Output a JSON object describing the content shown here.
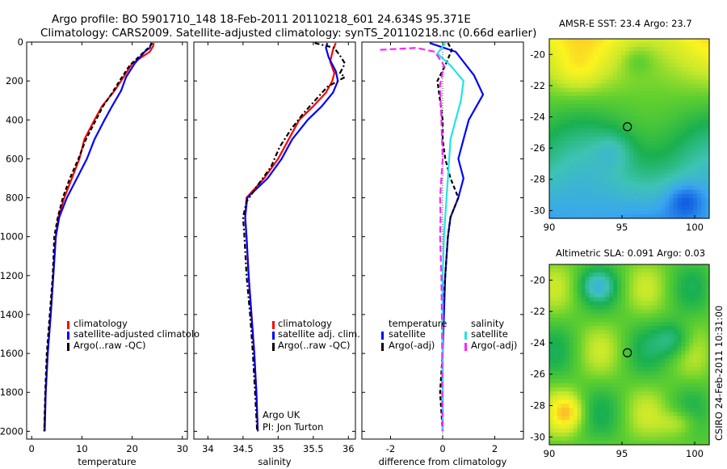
{
  "header": {
    "line1": "Argo profile: BO 5901710_148 18-Feb-2011 20110218_601 24.634S 95.371E",
    "line2": "Climatology: CARS2009. Satellite-adjusted climatology: synTS_20110218.nc (0.66d earlier)"
  },
  "footer_stamp": "CSIRO 24-Feb-2011 10:31:00",
  "colors": {
    "climatology": "#ff0000",
    "satellite": "#0000ff",
    "argo": "#000000",
    "sal_satellite": "#22e3e3",
    "sal_argo": "#ff22ff"
  },
  "chart_data": [
    {
      "type": "line",
      "xlabel": "temperature",
      "ylabel": "",
      "xlim": [
        -1,
        31
      ],
      "ylim": [
        2040,
        0
      ],
      "xticks": [
        0,
        10,
        20,
        30
      ],
      "yticks": [
        0,
        200,
        400,
        600,
        800,
        1000,
        1200,
        1400,
        1600,
        1800,
        2000
      ],
      "legend": [
        "climatology",
        "satellite-adjusted climatolo",
        "Argo(..raw -QC)"
      ],
      "series": [
        {
          "name": "climatology",
          "color": "#ff0000",
          "dash": "",
          "points": [
            [
              24.3,
              5
            ],
            [
              24.2,
              20
            ],
            [
              23.5,
              50
            ],
            [
              20.0,
              110
            ],
            [
              18.3,
              180
            ],
            [
              16.5,
              250
            ],
            [
              14.0,
              330
            ],
            [
              12.5,
              400
            ],
            [
              10.5,
              500
            ],
            [
              9.5,
              600
            ],
            [
              8.0,
              700
            ],
            [
              6.5,
              800
            ],
            [
              5.3,
              900
            ],
            [
              4.8,
              1000
            ],
            [
              4.3,
              1200
            ],
            [
              3.8,
              1400
            ],
            [
              3.2,
              1600
            ],
            [
              2.8,
              1800
            ],
            [
              2.5,
              2000
            ]
          ]
        },
        {
          "name": "satellite-adjusted climatolo",
          "color": "#0000ff",
          "dash": "",
          "points": [
            [
              23.8,
              5
            ],
            [
              23.5,
              30
            ],
            [
              22.5,
              50
            ],
            [
              20.5,
              110
            ],
            [
              18.8,
              180
            ],
            [
              17.8,
              250
            ],
            [
              16.0,
              330
            ],
            [
              14.5,
              400
            ],
            [
              12.5,
              500
            ],
            [
              11.0,
              600
            ],
            [
              9.0,
              700
            ],
            [
              7.0,
              800
            ],
            [
              5.5,
              900
            ],
            [
              4.8,
              1000
            ],
            [
              4.3,
              1200
            ],
            [
              3.8,
              1400
            ],
            [
              3.2,
              1600
            ],
            [
              2.8,
              1800
            ],
            [
              2.6,
              2000
            ]
          ]
        },
        {
          "name": "Argo(..raw -QC)",
          "color": "#000000",
          "dash": "5,3",
          "points": [
            [
              24.0,
              5
            ],
            [
              23.6,
              20
            ],
            [
              22.0,
              60
            ],
            [
              19.5,
              120
            ],
            [
              17.5,
              200
            ],
            [
              15.8,
              270
            ],
            [
              14.2,
              330
            ],
            [
              12.8,
              400
            ],
            [
              10.8,
              500
            ],
            [
              9.3,
              600
            ],
            [
              7.6,
              700
            ],
            [
              6.2,
              800
            ],
            [
              5.2,
              900
            ],
            [
              4.5,
              1000
            ],
            [
              4.2,
              1200
            ],
            [
              3.6,
              1400
            ],
            [
              3.0,
              1600
            ],
            [
              2.7,
              1800
            ],
            [
              2.5,
              2000
            ]
          ]
        }
      ]
    },
    {
      "type": "line",
      "xlabel": "salinity",
      "ylabel": "",
      "xlim": [
        33.8,
        36.1
      ],
      "ylim": [
        2040,
        0
      ],
      "xticks": [
        34,
        34.5,
        35,
        35.5,
        36
      ],
      "legend": [
        "climatology",
        "satellite adj. clim.",
        "Argo(..raw -QC)"
      ],
      "annotations": [
        "Argo UK",
        "PI: Jon Turton"
      ],
      "series": [
        {
          "name": "climatology",
          "color": "#ff0000",
          "dash": "",
          "points": [
            [
              35.82,
              5
            ],
            [
              35.78,
              40
            ],
            [
              35.74,
              100
            ],
            [
              35.8,
              160
            ],
            [
              35.77,
              200
            ],
            [
              35.68,
              260
            ],
            [
              35.5,
              330
            ],
            [
              35.3,
              400
            ],
            [
              35.15,
              500
            ],
            [
              35.0,
              600
            ],
            [
              34.8,
              700
            ],
            [
              34.55,
              800
            ],
            [
              34.53,
              900
            ],
            [
              34.55,
              1000
            ],
            [
              34.58,
              1200
            ],
            [
              34.62,
              1400
            ],
            [
              34.66,
              1600
            ],
            [
              34.69,
              1800
            ],
            [
              34.71,
              2000
            ]
          ]
        },
        {
          "name": "satellite adj. clim.",
          "color": "#0000ff",
          "dash": "",
          "points": [
            [
              35.7,
              5
            ],
            [
              35.68,
              30
            ],
            [
              35.72,
              80
            ],
            [
              35.82,
              150
            ],
            [
              35.85,
              200
            ],
            [
              35.78,
              260
            ],
            [
              35.62,
              330
            ],
            [
              35.42,
              400
            ],
            [
              35.2,
              500
            ],
            [
              35.05,
              600
            ],
            [
              34.85,
              700
            ],
            [
              34.56,
              800
            ],
            [
              34.53,
              900
            ],
            [
              34.55,
              1000
            ],
            [
              34.58,
              1200
            ],
            [
              34.62,
              1400
            ],
            [
              34.66,
              1600
            ],
            [
              34.69,
              1800
            ],
            [
              34.71,
              2000
            ]
          ]
        },
        {
          "name": "Argo(..raw -QC)",
          "color": "#000000",
          "dash": "6,3,2,3",
          "points": [
            [
              35.52,
              5
            ],
            [
              35.8,
              30
            ],
            [
              35.9,
              80
            ],
            [
              35.95,
              110
            ],
            [
              35.88,
              160
            ],
            [
              35.95,
              180
            ],
            [
              35.7,
              230
            ],
            [
              35.55,
              290
            ],
            [
              35.35,
              370
            ],
            [
              35.18,
              450
            ],
            [
              35.02,
              540
            ],
            [
              34.9,
              640
            ],
            [
              34.7,
              740
            ],
            [
              34.55,
              820
            ],
            [
              34.5,
              900
            ],
            [
              34.52,
              1000
            ],
            [
              34.55,
              1200
            ],
            [
              34.6,
              1400
            ],
            [
              34.64,
              1600
            ],
            [
              34.67,
              1800
            ],
            [
              34.7,
              2000
            ]
          ]
        }
      ]
    },
    {
      "type": "line",
      "xlabel": "difference from climatology",
      "ylabel": "",
      "xlim": [
        -3.1,
        3.1
      ],
      "ylim": [
        2040,
        0
      ],
      "xticks": [
        -2,
        0,
        2
      ],
      "legend_titles": [
        "temperature",
        "salinity"
      ],
      "legend": [
        "satellite",
        "Argo(-adj)",
        "satellite",
        "Argo(-adj)"
      ],
      "series": [
        {
          "name": "satellite",
          "group": "temperature",
          "color": "#0000ff",
          "dash": "",
          "points": [
            [
              -0.5,
              5
            ],
            [
              0.5,
              50
            ],
            [
              1.2,
              170
            ],
            [
              1.55,
              270
            ],
            [
              1.0,
              400
            ],
            [
              0.8,
              500
            ],
            [
              0.6,
              600
            ],
            [
              0.8,
              700
            ],
            [
              0.6,
              800
            ],
            [
              0.3,
              900
            ],
            [
              0.2,
              1000
            ],
            [
              0.1,
              1200
            ],
            [
              0.05,
              1400
            ],
            [
              0.0,
              1600
            ],
            [
              0.0,
              1800
            ],
            [
              0.0,
              2000
            ]
          ]
        },
        {
          "name": "Argo(-adj)",
          "group": "temperature",
          "color": "#000000",
          "dash": "5,3",
          "points": [
            [
              0.2,
              5
            ],
            [
              0.35,
              40
            ],
            [
              0.1,
              120
            ],
            [
              -0.2,
              200
            ],
            [
              -0.1,
              300
            ],
            [
              0.0,
              400
            ],
            [
              0.0,
              500
            ],
            [
              0.1,
              600
            ],
            [
              0.3,
              700
            ],
            [
              0.6,
              800
            ],
            [
              0.3,
              900
            ],
            [
              0.2,
              1000
            ],
            [
              0.1,
              1200
            ],
            [
              0.0,
              1400
            ],
            [
              0.0,
              1600
            ],
            [
              -0.1,
              1800
            ],
            [
              0.0,
              2000
            ]
          ]
        },
        {
          "name": "satellite",
          "group": "salinity",
          "color": "#22e3e3",
          "dash": "",
          "points": [
            [
              0.1,
              5
            ],
            [
              -0.2,
              60
            ],
            [
              0.3,
              120
            ],
            [
              0.8,
              200
            ],
            [
              0.7,
              300
            ],
            [
              0.5,
              400
            ],
            [
              0.3,
              500
            ],
            [
              0.25,
              600
            ],
            [
              0.2,
              700
            ],
            [
              0.15,
              800
            ],
            [
              0.1,
              900
            ],
            [
              0.05,
              1000
            ],
            [
              0.0,
              1200
            ],
            [
              0.0,
              1400
            ],
            [
              0.0,
              1600
            ],
            [
              0.0,
              1800
            ],
            [
              0.0,
              2000
            ]
          ]
        },
        {
          "name": "Argo(-adj)",
          "group": "salinity",
          "color": "#ff22ff",
          "dash": "8,4",
          "points": [
            [
              -2.4,
              40
            ],
            [
              -1.0,
              30
            ],
            [
              -0.3,
              50
            ],
            [
              0.05,
              120
            ],
            [
              -0.1,
              220
            ],
            [
              -0.05,
              400
            ],
            [
              0.0,
              600
            ],
            [
              -0.1,
              800
            ],
            [
              -0.08,
              900
            ],
            [
              -0.1,
              1000
            ],
            [
              -0.05,
              1200
            ],
            [
              -0.03,
              1400
            ],
            [
              -0.02,
              1600
            ],
            [
              -0.02,
              1800
            ],
            [
              0.0,
              2000
            ]
          ]
        }
      ]
    },
    {
      "type": "heatmap",
      "title": "AMSR-E SST: 23.4  Argo: 23.7",
      "xlim": [
        90,
        101
      ],
      "ylim": [
        -30.5,
        -19
      ],
      "xticks": [
        90,
        95,
        100
      ],
      "yticks": [
        -20,
        -22,
        -24,
        -26,
        -28,
        -30
      ],
      "marker": {
        "lon": 95.371,
        "lat": -24.634
      }
    },
    {
      "type": "heatmap",
      "title": "Altimetric SLA: 0.091  Argo: 0.03",
      "xlim": [
        90,
        101
      ],
      "ylim": [
        -30.5,
        -19
      ],
      "xticks": [
        90,
        95,
        100
      ],
      "yticks": [
        -20,
        -22,
        -24,
        -26,
        -28,
        -30
      ],
      "marker": {
        "lon": 95.371,
        "lat": -24.634
      }
    }
  ]
}
